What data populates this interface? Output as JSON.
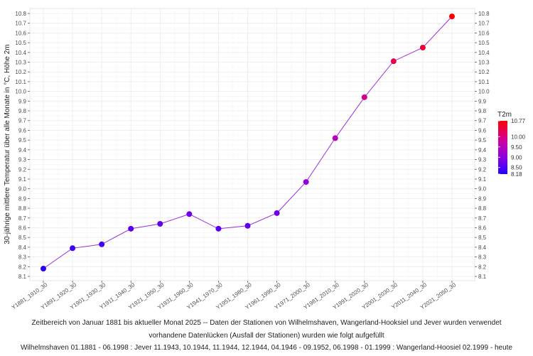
{
  "chart_data": {
    "type": "line",
    "ylabel": "30-jährige mittlere Temperatur über alle Monate in °C, Höhe 2m",
    "xlabel": "",
    "categories": [
      "Y1881_1910_30",
      "Y1891_1920_30",
      "Y1901_1930_30",
      "Y1911_1940_30",
      "Y1921_1950_30",
      "Y1931_1960_30",
      "Y1941_1970_30",
      "Y1951_1980_30",
      "Y1961_1990_30",
      "Y1971_2000_30",
      "Y1981_2010_30",
      "Y1991_2020_30",
      "Y2001_2030_30",
      "Y2011_2040_30",
      "Y2021_2050_30"
    ],
    "values": [
      8.18,
      8.39,
      8.43,
      8.59,
      8.64,
      8.74,
      8.59,
      8.62,
      8.75,
      9.07,
      9.52,
      9.94,
      10.31,
      10.45,
      10.77
    ],
    "ylim": [
      8.1,
      10.8
    ],
    "yticks": [
      "8.1",
      "8.2",
      "8.3",
      "8.4",
      "8.5",
      "8.6",
      "8.7",
      "8.8",
      "8.9",
      "9.0",
      "9.1",
      "9.2",
      "9.3",
      "9.4",
      "9.5",
      "9.6",
      "9.7",
      "9.8",
      "9.9",
      "10.0",
      "10.1",
      "10.2",
      "10.3",
      "10.4",
      "10.5",
      "10.6",
      "10.7",
      "10.8"
    ],
    "grid": true,
    "line_color": "#9b30d9",
    "legend": {
      "title": "T2m",
      "position": "right",
      "labels": [
        "10.77",
        "10.00",
        "9.50",
        "9.00",
        "8.50",
        "8.18"
      ],
      "min": 8.18,
      "max": 10.77,
      "colors": [
        "#2200ff",
        "#8a00e0",
        "#c800a8",
        "#ff0000"
      ]
    }
  },
  "caption": {
    "line1": "Zeitbereich von Januar 1881 bis aktueller Monat 2025   --   Daten der Stationen von  Wilhelmshaven, Wangerland-Hooksiel und Jever wurden verwendet",
    "line2": "vorhandene Datenlücken (Ausfall der Stationen) wurden wie folgt aufgefüllt",
    "line3": "Wilhelmshaven 01.1881 - 06.1998 : Jever 11.1943, 10.1944, 11.1944, 12.1944, 04.1946 - 09.1952, 06.1998 - 01.1999 : Wangerland-Hoosiel 02.1999 - heute"
  }
}
